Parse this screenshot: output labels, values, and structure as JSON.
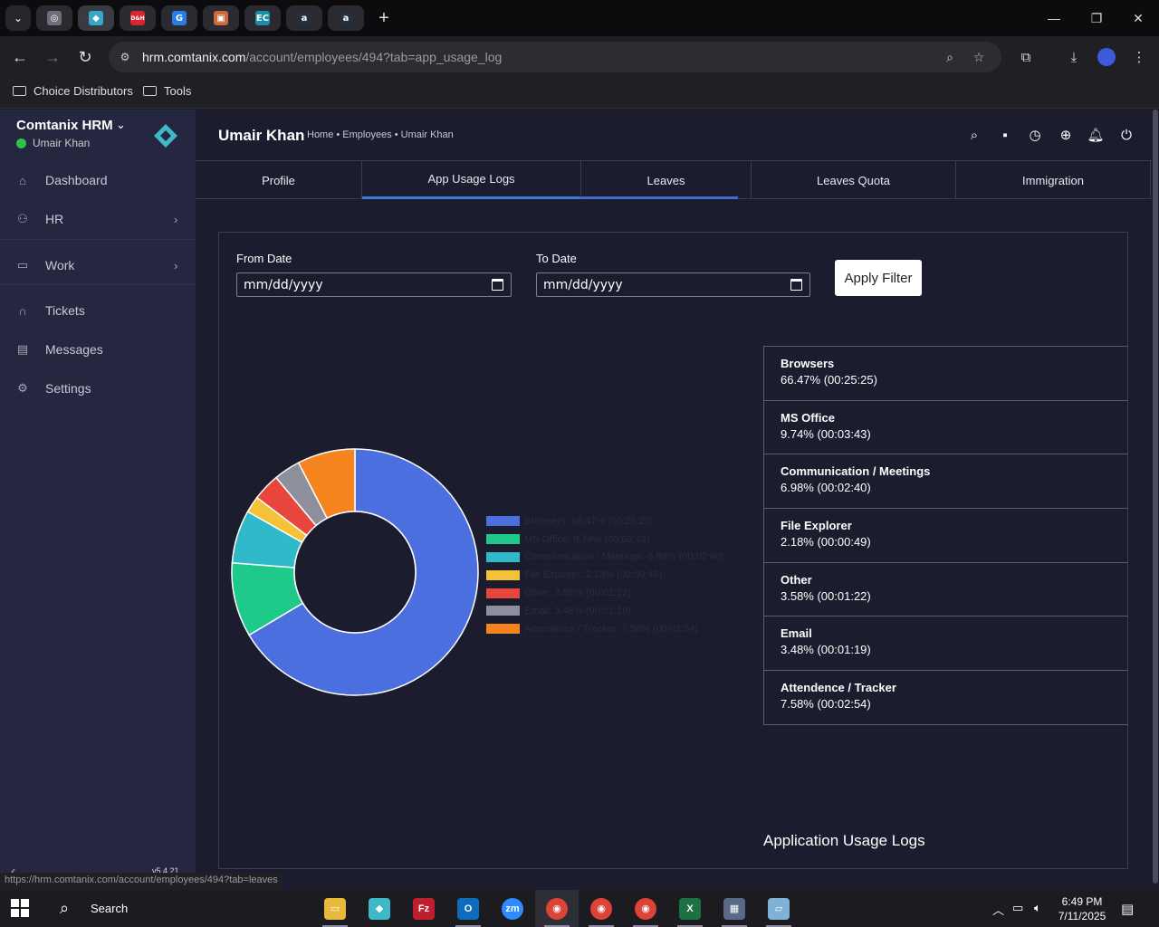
{
  "browser": {
    "tabs": [
      {
        "icon": "openai-icon",
        "color": "#6e6e78",
        "glyph": "◎"
      },
      {
        "icon": "comtanix-icon",
        "color": "#3aa6c9",
        "glyph": "◆",
        "active": true
      },
      {
        "icon": "dnh-icon",
        "color": "#d8262f",
        "glyph": "D&H"
      },
      {
        "icon": "g-icon",
        "color": "#2a7be4",
        "glyph": "G"
      },
      {
        "icon": "box-icon",
        "color": "#c96b3a",
        "glyph": "▣"
      },
      {
        "icon": "ec-icon",
        "color": "#1e8ba8",
        "glyph": "EC"
      },
      {
        "icon": "amazon-icon",
        "color": "#232f3e",
        "glyph": "a"
      },
      {
        "icon": "amazon-icon",
        "color": "#232f3e",
        "glyph": "a"
      }
    ],
    "url_host": "hrm.comtanix.com",
    "url_path": "/account/employees/494?tab=app_usage_log",
    "bookmarks": [
      "Choice Distributors",
      "Tools"
    ],
    "status_url": "https://hrm.comtanix.com/account/employees/494?tab=leaves"
  },
  "sidebar": {
    "brand": "Comtanix HRM",
    "user": "Umair Khan",
    "items": [
      {
        "label": "Dashboard",
        "icon": "home-icon"
      },
      {
        "label": "HR",
        "icon": "users-icon",
        "has_children": true
      },
      {
        "label": "Work",
        "icon": "briefcase-icon",
        "has_children": true
      },
      {
        "label": "Tickets",
        "icon": "headset-icon"
      },
      {
        "label": "Messages",
        "icon": "message-icon"
      },
      {
        "label": "Settings",
        "icon": "gear-icon"
      }
    ],
    "version": "v5.4.21"
  },
  "header": {
    "title": "Umair Khan",
    "breadcrumb": "Home • Employees • Umair Khan"
  },
  "tabs": [
    "Profile",
    "App Usage Logs",
    "Leaves",
    "Leaves Quota",
    "Immigration"
  ],
  "filter": {
    "from_label": "From Date",
    "to_label": "To Date",
    "from_value": "mm/dd/yyyy",
    "to_value": "mm/dd/yyyy",
    "apply_label": "Apply Filter"
  },
  "chart_data": {
    "type": "pie",
    "variant": "donut",
    "categories": [
      "Browsers",
      "MS Office",
      "Communication / Meetings",
      "File Explorer",
      "Other",
      "Email",
      "Attendence / Tracker"
    ],
    "values": [
      66.47,
      9.74,
      6.98,
      2.18,
      3.58,
      3.48,
      7.58
    ],
    "colors": [
      "#4b6fdf",
      "#1fc98a",
      "#2fb9c9",
      "#f3c236",
      "#e8453c",
      "#8d8f9c",
      "#f5841f"
    ],
    "legend_labels": [
      "Browsers: 66.47% (00:25:25)",
      "MS Office: 9.74% (00:03:43)",
      "Communication / Meetings: 6.98% (00:02:40)",
      "File Explorer: 2.18% (00:00:49)",
      "Other: 3.58% (00:01:22)",
      "Email: 3.48% (00:01:19)",
      "Attendence / Tracker: 7.58% (00:02:54)"
    ],
    "legend_position": "right"
  },
  "stats": [
    {
      "name": "Browsers",
      "value": "66.47% (00:25:25)"
    },
    {
      "name": "MS Office",
      "value": "9.74% (00:03:43)"
    },
    {
      "name": "Communication / Meetings",
      "value": "6.98% (00:02:40)"
    },
    {
      "name": "File Explorer",
      "value": "2.18% (00:00:49)"
    },
    {
      "name": "Other",
      "value": "3.58% (00:01:22)"
    },
    {
      "name": "Email",
      "value": "3.48% (00:01:19)"
    },
    {
      "name": "Attendence / Tracker",
      "value": "7.58% (00:02:54)"
    }
  ],
  "footer_title": "Application Usage Logs",
  "taskbar": {
    "search_label": "Search",
    "time": "6:49 PM",
    "date": "7/11/2025"
  }
}
